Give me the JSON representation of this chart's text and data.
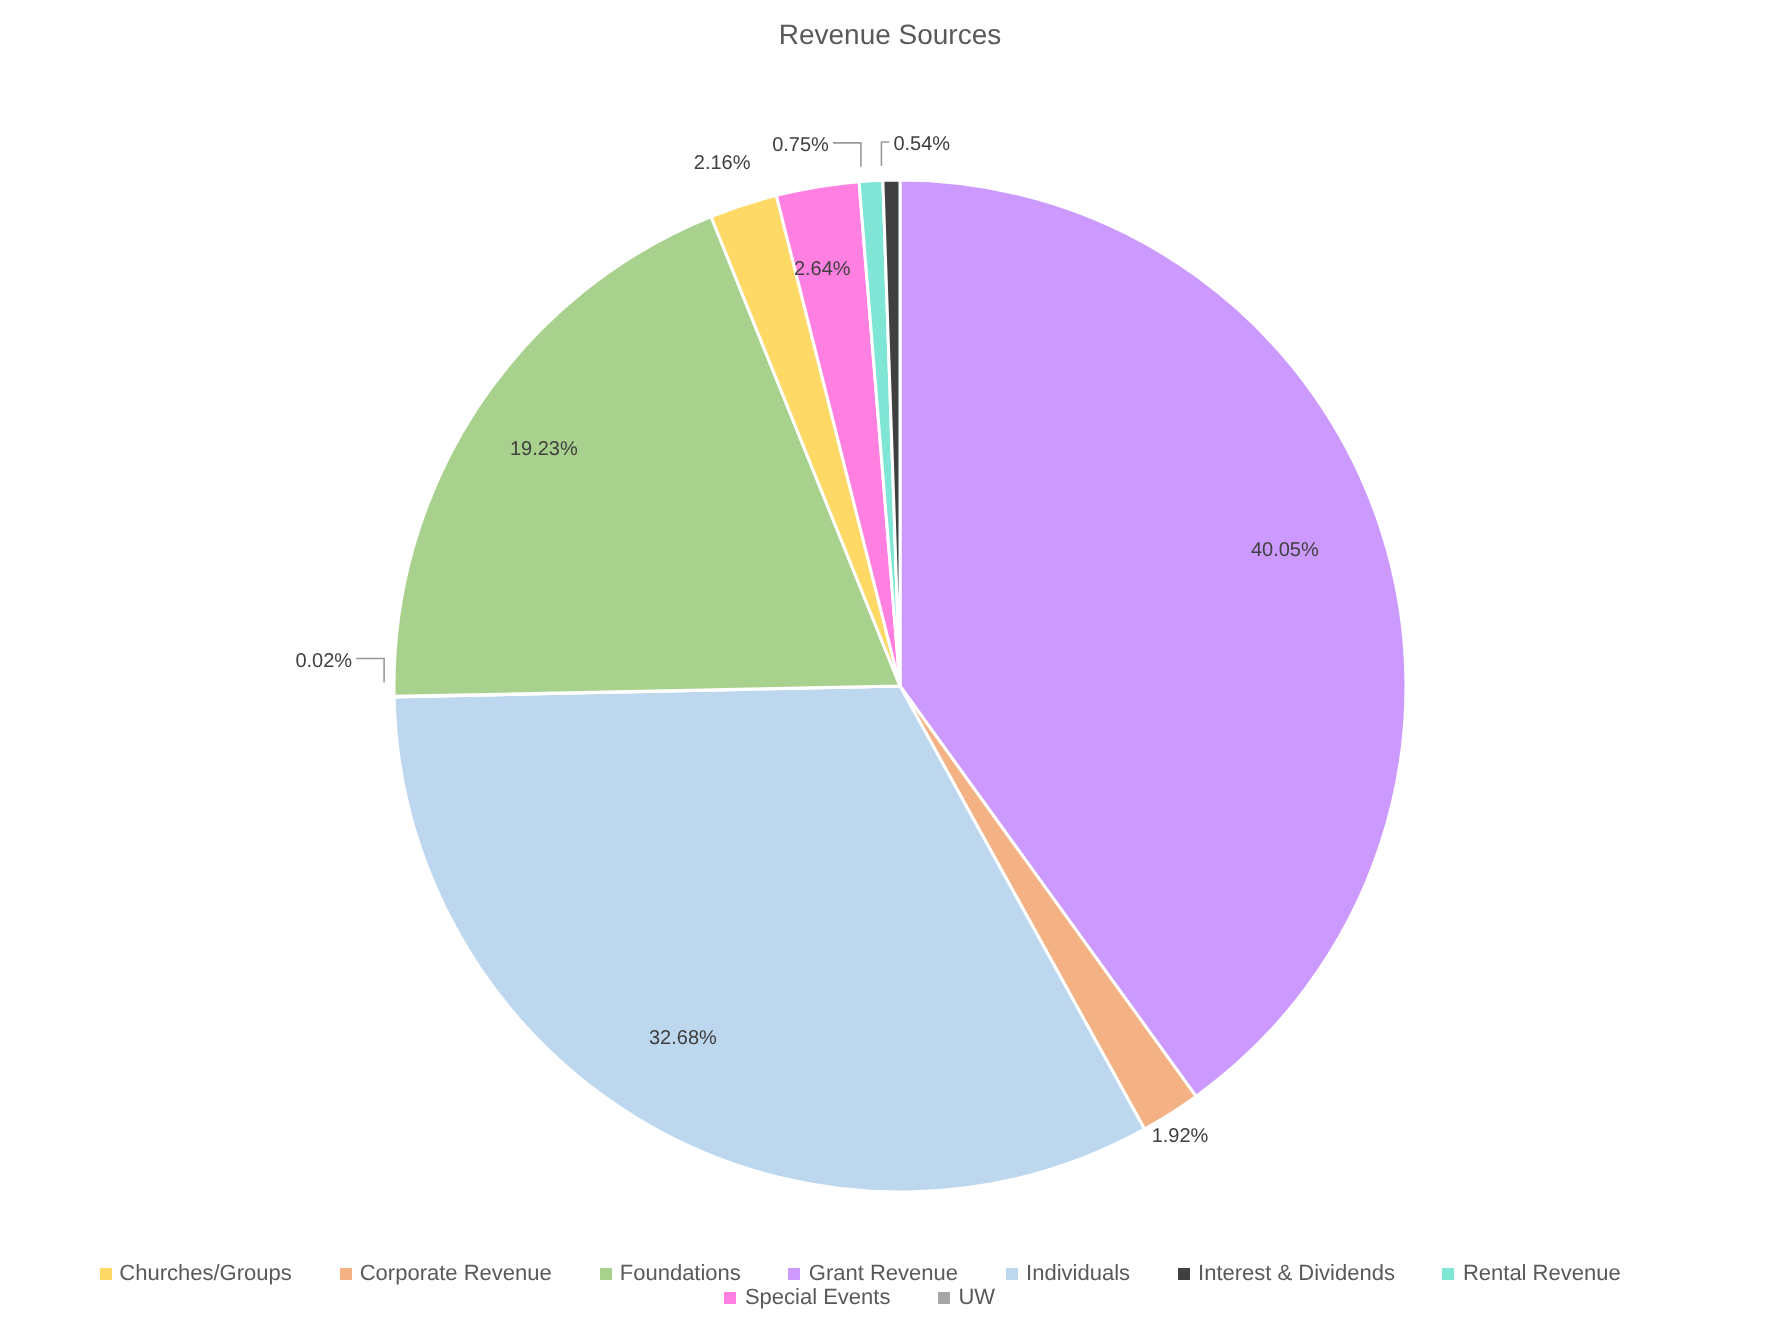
{
  "chart_data": {
    "type": "pie",
    "title": "Revenue Sources",
    "categories": [
      "Grant Revenue",
      "Corporate Revenue",
      "Individuals",
      "UW",
      "Foundations",
      "Churches/Groups",
      "Special Events",
      "Rental Revenue",
      "Interest & Dividends"
    ],
    "values": [
      40.05,
      1.92,
      32.68,
      0.02,
      19.23,
      2.16,
      2.64,
      0.75,
      0.54
    ],
    "colors": [
      "#cc99ff",
      "#f4b183",
      "#bdd7ee",
      "#a5a5a5",
      "#a9d18e",
      "#ffd966",
      "#ff80e0",
      "#7fe6d5",
      "#404040"
    ],
    "value_labels": [
      "40.05%",
      "1.92%",
      "32.68%",
      "0.02%",
      "19.23%",
      "2.16%",
      "2.64%",
      "0.75%",
      "0.54%"
    ],
    "legend": "bottom"
  }
}
